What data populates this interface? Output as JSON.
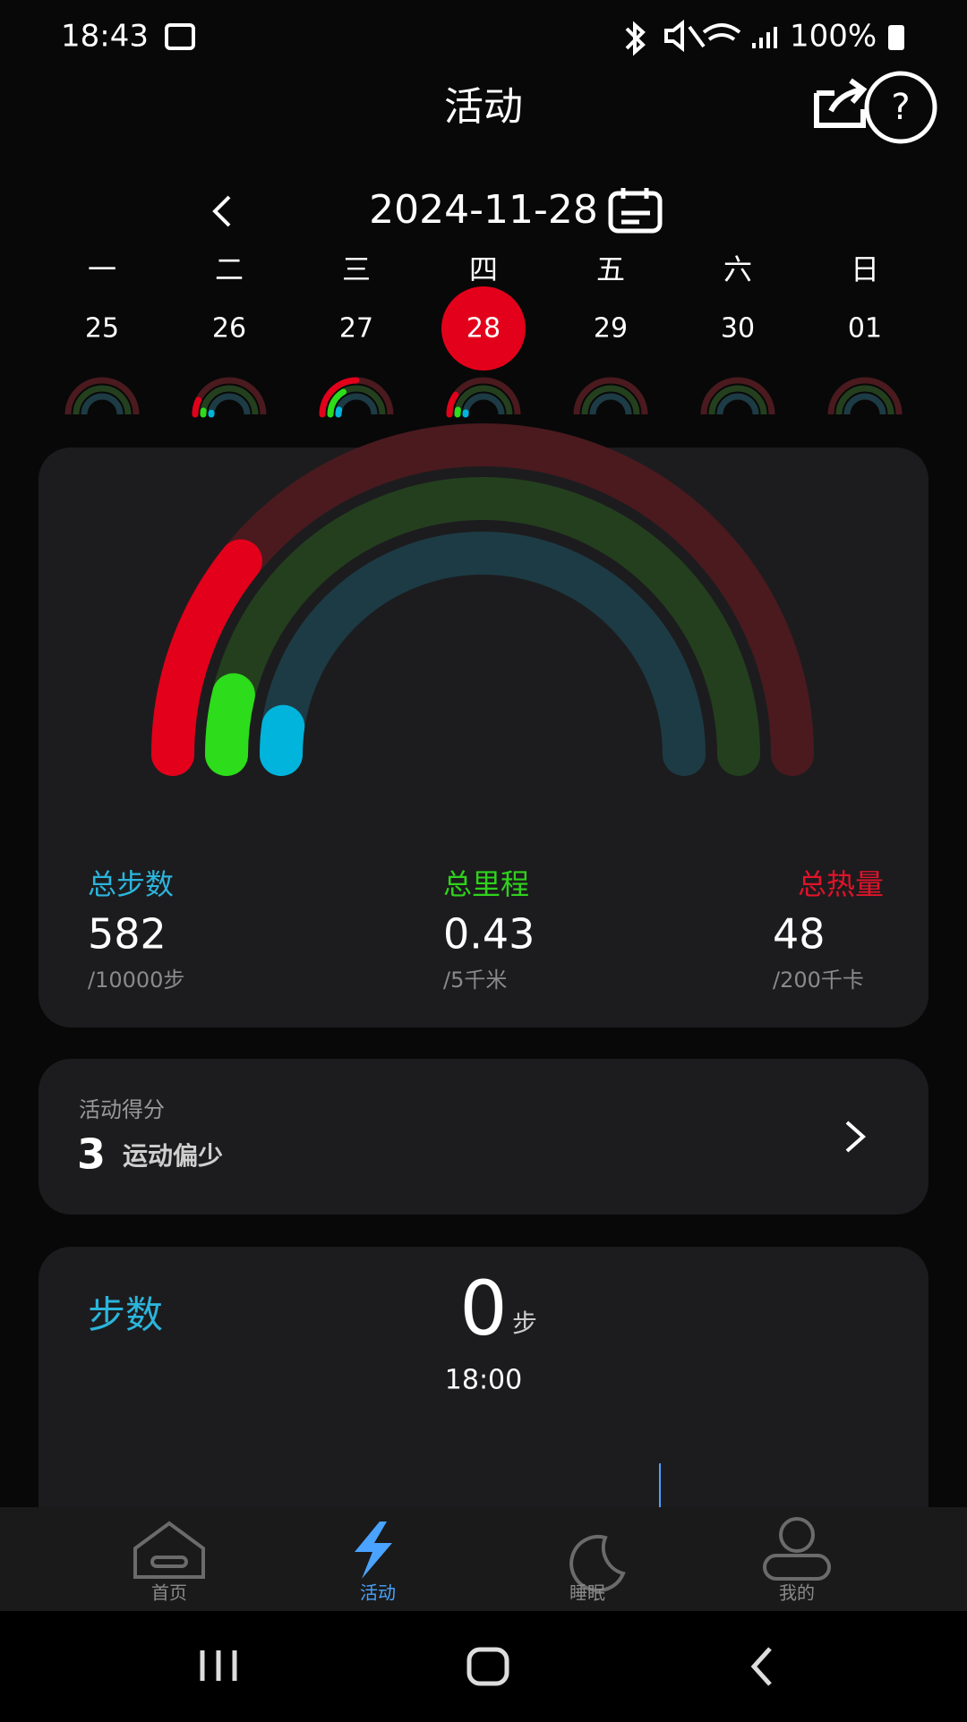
{
  "status_bar": {
    "time": "18:43",
    "battery": "100%"
  },
  "header": {
    "title": "活动"
  },
  "date_nav": {
    "date": "2024-11-28",
    "weekdays": [
      "一",
      "二",
      "三",
      "四",
      "五",
      "六",
      "日"
    ],
    "days": [
      "25",
      "26",
      "27",
      "28",
      "29",
      "30",
      "01"
    ],
    "selected_index": 3
  },
  "summary": {
    "stats": [
      {
        "label": "总步数",
        "value": "582",
        "goal": "/10000步",
        "color": "#2bb5dc"
      },
      {
        "label": "总里程",
        "value": "0.43",
        "goal": "/5千米",
        "color": "#2fd21c"
      },
      {
        "label": "总热量",
        "value": "48",
        "goal": "/200千卡",
        "color": "#e0132a"
      }
    ]
  },
  "score": {
    "label": "活动得分",
    "value": "3",
    "text": "运动偏少"
  },
  "steps_card": {
    "title": "步数",
    "value": "0",
    "unit": "步",
    "time": "18:00"
  },
  "nav": {
    "items": [
      {
        "label": "首页"
      },
      {
        "label": "活动"
      },
      {
        "label": "睡眠"
      },
      {
        "label": "我的"
      }
    ],
    "active_index": 1,
    "active_color": "#4aa3ff"
  }
}
